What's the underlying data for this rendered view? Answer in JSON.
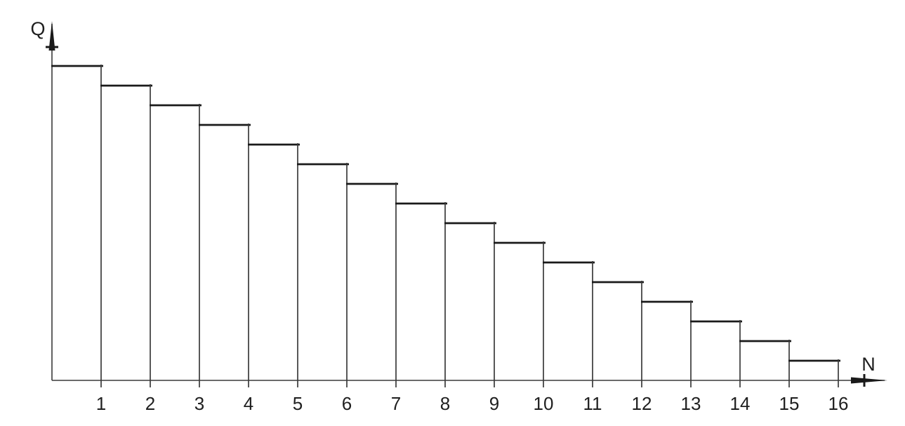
{
  "colors": {
    "line": "#1a1a1a",
    "thin_line": "#3a3a3a",
    "text": "#1f1f1f",
    "background": "#ffffff"
  },
  "chart_data": {
    "type": "bar",
    "subtype": "staircase-step-outline",
    "title": "",
    "xlabel": "N",
    "ylabel": "Q",
    "categories": [
      "1",
      "2",
      "3",
      "4",
      "5",
      "6",
      "7",
      "8",
      "9",
      "10",
      "11",
      "12",
      "13",
      "14",
      "15",
      "16"
    ],
    "values": [
      16,
      15,
      14,
      13,
      12,
      11,
      10,
      9,
      8,
      7,
      6,
      5,
      4,
      3,
      2,
      1
    ],
    "value_units": "relative (no y-axis tick labels shown; heights decrease in equal decrements)",
    "xlim": [
      0,
      17
    ],
    "ylim": [
      0,
      16
    ],
    "grid": false,
    "legend": null,
    "axis_style": "engineering-drawing arrows on both axes"
  }
}
